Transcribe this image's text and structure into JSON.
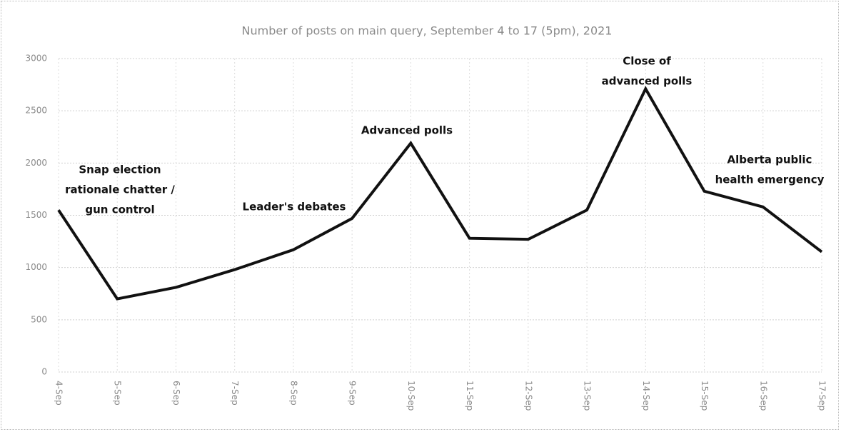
{
  "chart_data": {
    "type": "line",
    "title": "Number of posts on main query, September 4 to 17 (5pm), 2021",
    "categories": [
      "4-Sep",
      "5-Sep",
      "6-Sep",
      "7-Sep",
      "8-Sep",
      "9-Sep",
      "10-Sep",
      "11-Sep",
      "12-Sep",
      "13-Sep",
      "14-Sep",
      "15-Sep",
      "16-Sep",
      "17-Sep"
    ],
    "values": [
      1550,
      700,
      810,
      980,
      1170,
      1470,
      2190,
      1280,
      1270,
      1550,
      2710,
      1730,
      1580,
      1150
    ],
    "color": "#111111",
    "ylim": [
      0,
      3000
    ],
    "yticks": [
      0,
      500,
      1000,
      1500,
      2000,
      2500,
      3000
    ],
    "grid": true,
    "annotations": [
      [
        "Snap election",
        "rationale chatter /",
        "gun control"
      ],
      [
        "Leader's debates"
      ],
      [
        "Advanced polls"
      ],
      [
        "Close of",
        "advanced polls"
      ],
      [
        "Alberta public",
        "health emergency"
      ]
    ]
  }
}
